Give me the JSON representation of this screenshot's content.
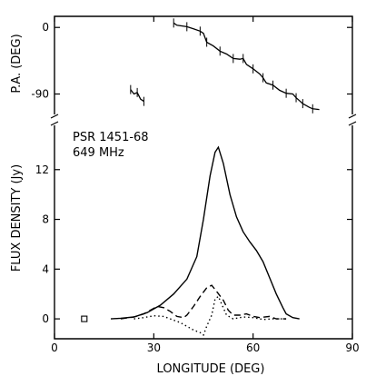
{
  "chart_data": [
    {
      "type": "line",
      "ylabel": "P.A. (DEG)",
      "ylim": [
        -125,
        15
      ],
      "yticks": [
        0,
        -90
      ],
      "series": [
        {
          "points": [
            [
              23,
              -84
            ],
            [
              24,
              -90
            ],
            [
              25,
              -88
            ],
            [
              26,
              -97
            ],
            [
              27,
              -100
            ]
          ]
        },
        {
          "points": [
            [
              36,
              6
            ],
            [
              37,
              3
            ],
            [
              40,
              1
            ],
            [
              42,
              -2
            ],
            [
              44,
              -5
            ],
            [
              45,
              -8
            ],
            [
              46,
              -20
            ],
            [
              48,
              -25
            ],
            [
              50,
              -32
            ],
            [
              52,
              -36
            ],
            [
              54,
              -42
            ],
            [
              56,
              -43
            ],
            [
              57,
              -42
            ],
            [
              58,
              -50
            ],
            [
              60,
              -56
            ],
            [
              62,
              -63
            ],
            [
              63,
              -68
            ],
            [
              64,
              -75
            ],
            [
              66,
              -78
            ],
            [
              68,
              -85
            ],
            [
              70,
              -89
            ],
            [
              72,
              -90
            ],
            [
              73,
              -95
            ],
            [
              74,
              -99
            ],
            [
              75,
              -103
            ],
            [
              77,
              -108
            ],
            [
              78,
              -110
            ],
            [
              80,
              -111
            ]
          ]
        }
      ]
    },
    {
      "type": "line",
      "annotations": [
        "PSR 1451-68",
        "649 MHz"
      ],
      "xlabel": "LONGITUDE (DEG)",
      "ylabel": "FLUX DENSITY (Jy)",
      "xlim": [
        0,
        90
      ],
      "ylim": [
        -1.6,
        16
      ],
      "xticks": [
        0,
        30,
        60,
        90
      ],
      "yticks": [
        0,
        4,
        8,
        12
      ],
      "marker_point": [
        9,
        0
      ],
      "series": [
        {
          "style": "solid",
          "points": [
            [
              17,
              0
            ],
            [
              20,
              0.05
            ],
            [
              24,
              0.15
            ],
            [
              28,
              0.5
            ],
            [
              32,
              1.1
            ],
            [
              36,
              2.0
            ],
            [
              40,
              3.2
            ],
            [
              43,
              5.0
            ],
            [
              45,
              8.0
            ],
            [
              47,
              11.5
            ],
            [
              48.5,
              13.4
            ],
            [
              49.5,
              13.8
            ],
            [
              51,
              12.5
            ],
            [
              53,
              10.0
            ],
            [
              55,
              8.2
            ],
            [
              57,
              7.0
            ],
            [
              59,
              6.2
            ],
            [
              61,
              5.5
            ],
            [
              63,
              4.6
            ],
            [
              65,
              3.3
            ],
            [
              67,
              2.0
            ],
            [
              69,
              0.9
            ],
            [
              70,
              0.4
            ],
            [
              72,
              0.1
            ],
            [
              74,
              0
            ]
          ]
        },
        {
          "style": "dashed",
          "points": [
            [
              20,
              0
            ],
            [
              24,
              0.15
            ],
            [
              27,
              0.4
            ],
            [
              29,
              0.7
            ],
            [
              31,
              1.0
            ],
            [
              33,
              0.9
            ],
            [
              35,
              0.6
            ],
            [
              37,
              0.2
            ],
            [
              39,
              0.1
            ],
            [
              40,
              0.3
            ],
            [
              42,
              1.0
            ],
            [
              44,
              1.8
            ],
            [
              46,
              2.5
            ],
            [
              47.5,
              2.7
            ],
            [
              49,
              2.2
            ],
            [
              51,
              1.5
            ],
            [
              52.5,
              0.7
            ],
            [
              54,
              0.3
            ],
            [
              56,
              0.3
            ],
            [
              58,
              0.4
            ],
            [
              60,
              0.2
            ],
            [
              62,
              0.1
            ],
            [
              65,
              0.2
            ],
            [
              67,
              0
            ],
            [
              70,
              0
            ]
          ]
        },
        {
          "style": "dotted",
          "points": [
            [
              24,
              0
            ],
            [
              27,
              0.1
            ],
            [
              30,
              0.25
            ],
            [
              33,
              0.2
            ],
            [
              36,
              -0.1
            ],
            [
              38,
              -0.3
            ],
            [
              40,
              -0.6
            ],
            [
              42,
              -0.9
            ],
            [
              44,
              -1.1
            ],
            [
              45,
              -1.3
            ],
            [
              46,
              -0.6
            ],
            [
              47.5,
              0.3
            ],
            [
              48.5,
              1.6
            ],
            [
              49.5,
              1.8
            ],
            [
              50.5,
              1.2
            ],
            [
              52,
              0.3
            ],
            [
              54,
              0
            ],
            [
              57,
              0.15
            ],
            [
              60,
              0.1
            ],
            [
              63,
              -0.05
            ],
            [
              66,
              0
            ],
            [
              70,
              0
            ]
          ]
        }
      ]
    }
  ]
}
